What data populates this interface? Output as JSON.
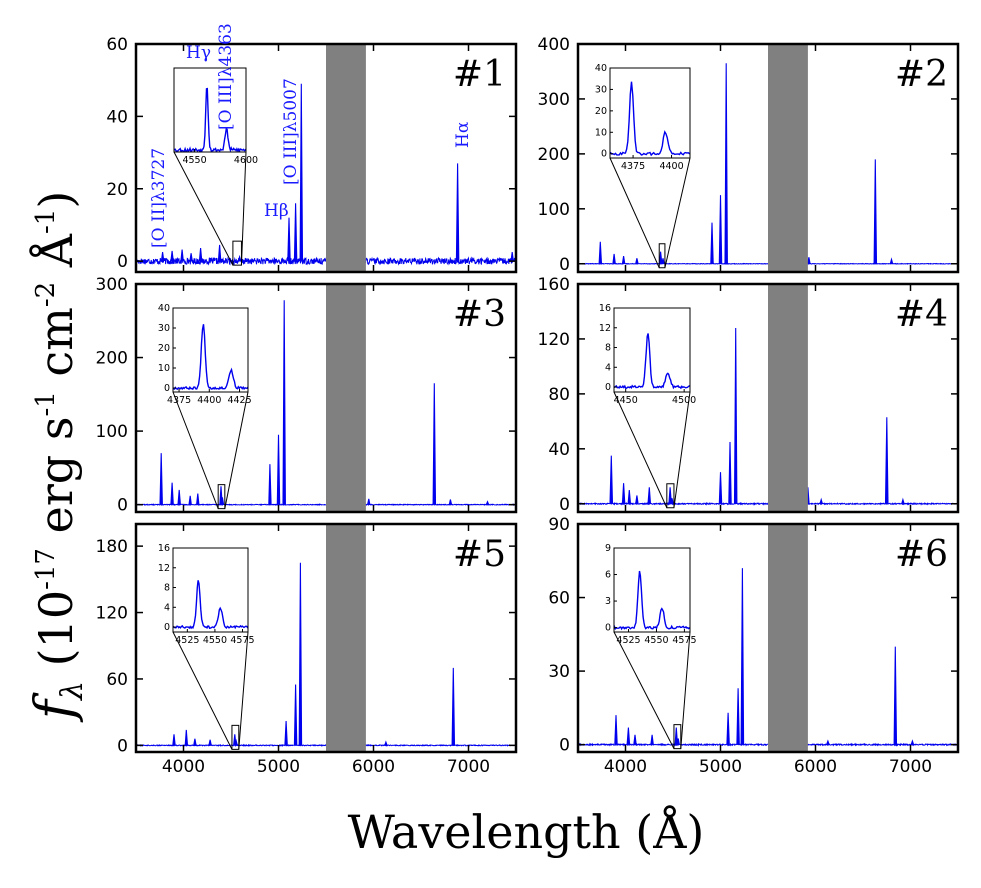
{
  "figure": {
    "xlabel": "Wavelength (Å)",
    "ylabel": {
      "f": "f",
      "lambda": "λ",
      "open": " (10",
      "exp1": "-17",
      "erg": " erg s",
      "exp2": "-1",
      "cm": " cm",
      "exp3": "-2",
      "ang": " Å",
      "exp4": "-1",
      "close": ")"
    },
    "line_labels": [
      "[O II]λ3727",
      "Hγ",
      "[O III]λ4363",
      "Hβ",
      "[O III]λ5007",
      "Hα"
    ],
    "colors": {
      "spectrum": "#0000ee",
      "masked": "#808080",
      "label": "#1a1aff"
    }
  },
  "chart_data": [
    {
      "type": "line",
      "label": "#1",
      "xlim": [
        3500,
        7500
      ],
      "ylim": [
        -3,
        60
      ],
      "yticks": [
        0,
        20,
        40,
        60
      ],
      "xticks": [
        4000,
        5000,
        6000,
        7000
      ],
      "masked_range": [
        5500,
        5920
      ],
      "noise": 0.8,
      "redshift": 1.1,
      "peaks": [
        [
          3780,
          2.5
        ],
        [
          3880,
          2.8
        ],
        [
          3985,
          3.2
        ],
        [
          4080,
          2.2
        ],
        [
          4180,
          3.6
        ],
        [
          4380,
          4.5
        ],
        [
          4590,
          1.2
        ],
        [
          5110,
          12.0
        ],
        [
          5180,
          16.0
        ],
        [
          5240,
          49.0
        ],
        [
          6885,
          27.0
        ],
        [
          7460,
          2.5
        ]
      ],
      "inset": {
        "xlim": [
          4530,
          4600
        ],
        "ylim": [
          -1,
          40
        ],
        "xticks": [
          4550,
          4600
        ],
        "yticks": [],
        "box": [
          4520,
          4610
        ],
        "noise": 0.9,
        "peaks": [
          [
            4562,
            32,
            1.2
          ],
          [
            4581,
            10,
            1.5
          ]
        ]
      }
    },
    {
      "type": "line",
      "label": "#2",
      "xlim": [
        3500,
        7500
      ],
      "ylim": [
        -15,
        400
      ],
      "yticks": [
        0,
        100,
        200,
        300,
        400
      ],
      "xticks": [
        4000,
        5000,
        6000,
        7000
      ],
      "masked_range": [
        5500,
        5920
      ],
      "noise": 0.5,
      "redshift": 1.0,
      "peaks": [
        [
          3735,
          40
        ],
        [
          3880,
          18
        ],
        [
          3980,
          14
        ],
        [
          4120,
          10
        ],
        [
          4370,
          22
        ],
        [
          4395,
          10
        ],
        [
          4910,
          75
        ],
        [
          5000,
          125
        ],
        [
          5060,
          365
        ],
        [
          5930,
          12
        ],
        [
          6630,
          190
        ],
        [
          6800,
          8
        ]
      ],
      "inset": {
        "xlim": [
          4360,
          4412
        ],
        "ylim": [
          -2,
          40
        ],
        "xticks": [
          4375,
          4400
        ],
        "yticks": [
          0,
          10,
          20,
          30,
          40
        ],
        "box": [
          4355,
          4415
        ],
        "noise": 0.6,
        "peaks": [
          [
            4374,
            33,
            1.3
          ],
          [
            4396,
            10,
            1.5
          ]
        ]
      }
    },
    {
      "type": "line",
      "label": "#3",
      "xlim": [
        3500,
        7500
      ],
      "ylim": [
        -10,
        300
      ],
      "yticks": [
        0,
        100,
        200,
        300
      ],
      "xticks": [
        4000,
        5000,
        6000,
        7000
      ],
      "masked_range": [
        5500,
        5920
      ],
      "noise": 0.5,
      "redshift": 1.0,
      "peaks": [
        [
          3765,
          70
        ],
        [
          3880,
          30
        ],
        [
          3955,
          20
        ],
        [
          4070,
          12
        ],
        [
          4150,
          15
        ],
        [
          4395,
          25
        ],
        [
          4410,
          10
        ],
        [
          4910,
          55
        ],
        [
          5000,
          95
        ],
        [
          5060,
          278
        ],
        [
          5950,
          8
        ],
        [
          6640,
          165
        ],
        [
          6810,
          7
        ],
        [
          7200,
          4
        ]
      ],
      "inset": {
        "xlim": [
          4370,
          4432
        ],
        "ylim": [
          -2,
          40
        ],
        "xticks": [
          4375,
          4400,
          4425
        ],
        "yticks": [
          0,
          10,
          20,
          30,
          40
        ],
        "box": [
          4365,
          4435
        ],
        "noise": 0.6,
        "peaks": [
          [
            4395,
            32,
            1.6
          ],
          [
            4418,
            9,
            1.8
          ]
        ]
      }
    },
    {
      "type": "line",
      "label": "#4",
      "xlim": [
        3500,
        7500
      ],
      "ylim": [
        -6,
        160
      ],
      "yticks": [
        0,
        40,
        80,
        120,
        160
      ],
      "xticks": [
        4000,
        5000,
        6000,
        7000
      ],
      "masked_range": [
        5500,
        5920
      ],
      "noise": 0.4,
      "redshift": 1.0,
      "peaks": [
        [
          3850,
          35
        ],
        [
          3980,
          15
        ],
        [
          4040,
          10
        ],
        [
          4120,
          6
        ],
        [
          4250,
          12
        ],
        [
          4470,
          12
        ],
        [
          4490,
          4
        ],
        [
          5000,
          23
        ],
        [
          5100,
          45
        ],
        [
          5160,
          128
        ],
        [
          5920,
          12
        ],
        [
          6060,
          3
        ],
        [
          6750,
          63
        ],
        [
          6920,
          3
        ]
      ],
      "inset": {
        "xlim": [
          4440,
          4505
        ],
        "ylim": [
          -1,
          16
        ],
        "xticks": [
          4450,
          4500
        ],
        "yticks": [
          0,
          4,
          8,
          12,
          16
        ],
        "box": [
          4435,
          4510
        ],
        "noise": 0.25,
        "peaks": [
          [
            4469,
            11,
            1.6
          ],
          [
            4486,
            3,
            1.8
          ]
        ]
      }
    },
    {
      "type": "line",
      "label": "#5",
      "xlim": [
        3500,
        7500
      ],
      "ylim": [
        -6,
        200
      ],
      "yticks": [
        0,
        60,
        120,
        180
      ],
      "xticks": [
        4000,
        5000,
        6000,
        7000
      ],
      "masked_range": [
        5500,
        5920
      ],
      "noise": 0.4,
      "redshift": 1.0,
      "peaks": [
        [
          3900,
          10
        ],
        [
          4030,
          14
        ],
        [
          4120,
          6
        ],
        [
          4280,
          5
        ],
        [
          4540,
          10
        ],
        [
          4555,
          4
        ],
        [
          5080,
          22
        ],
        [
          5180,
          55
        ],
        [
          5230,
          165
        ],
        [
          6130,
          3
        ],
        [
          6840,
          70
        ]
      ],
      "inset": {
        "xlim": [
          4512,
          4580
        ],
        "ylim": [
          -1,
          16
        ],
        "xticks": [
          4525,
          4550,
          4575
        ],
        "yticks": [
          0,
          4,
          8,
          12,
          16
        ],
        "box": [
          4510,
          4582
        ],
        "noise": 0.25,
        "peaks": [
          [
            4535,
            9.5,
            1.6
          ],
          [
            4555,
            3.8,
            1.8
          ]
        ]
      }
    },
    {
      "type": "line",
      "label": "#6",
      "xlim": [
        3500,
        7500
      ],
      "ylim": [
        -3,
        90
      ],
      "yticks": [
        0,
        30,
        60,
        90
      ],
      "xticks": [
        4000,
        5000,
        6000,
        7000
      ],
      "masked_range": [
        5500,
        5920
      ],
      "noise": 0.25,
      "redshift": 1.0,
      "peaks": [
        [
          3900,
          12
        ],
        [
          4030,
          7
        ],
        [
          4100,
          4
        ],
        [
          4280,
          4
        ],
        [
          4535,
          7
        ],
        [
          4555,
          2.5
        ],
        [
          5080,
          13
        ],
        [
          5185,
          23
        ],
        [
          5230,
          72
        ],
        [
          6130,
          1.5
        ],
        [
          6840,
          40
        ],
        [
          7020,
          1.5
        ]
      ],
      "inset": {
        "xlim": [
          4512,
          4580
        ],
        "ylim": [
          -0.5,
          9
        ],
        "xticks": [
          4525,
          4550,
          4575
        ],
        "yticks": [
          0,
          3,
          6,
          9
        ],
        "box": [
          4510,
          4582
        ],
        "noise": 0.15,
        "peaks": [
          [
            4535,
            6.4,
            1.6
          ],
          [
            4555,
            2.2,
            1.8
          ]
        ]
      }
    }
  ]
}
